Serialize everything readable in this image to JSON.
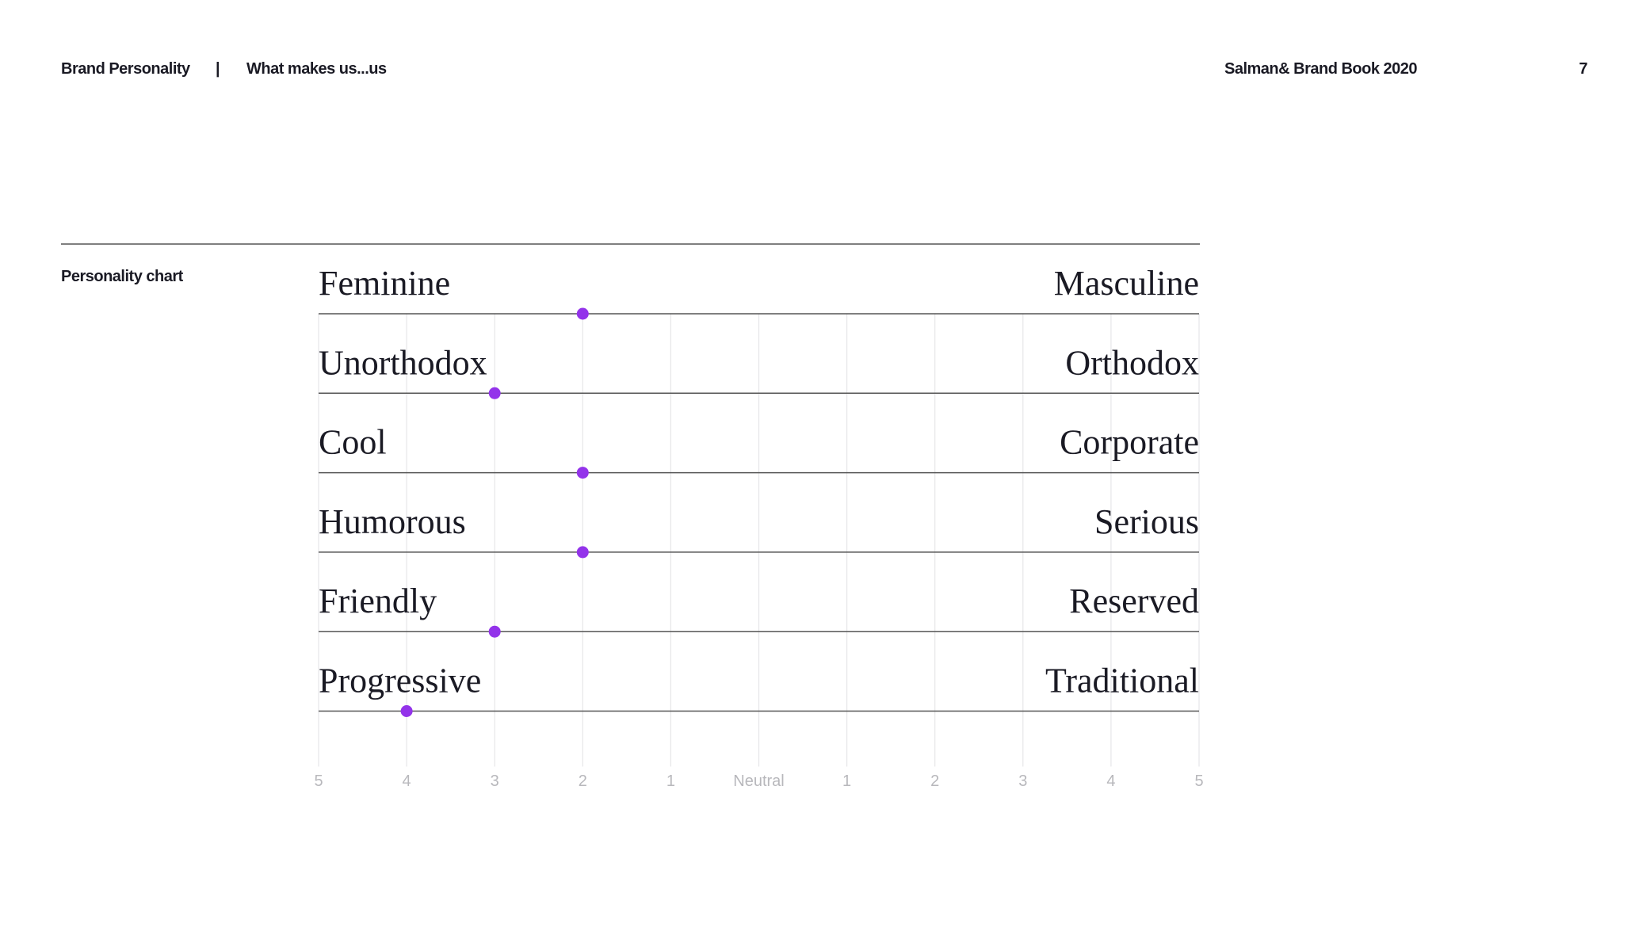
{
  "header": {
    "section": "Brand Personality",
    "separator": "|",
    "subtitle": "What makes us...us",
    "book": "Salman& Brand Book 2020",
    "page": "7"
  },
  "chart_data": {
    "type": "dot",
    "title": "Personality chart",
    "categories": [
      "Feminine",
      "Unorthodox",
      "Cool",
      "Humorous",
      "Friendly",
      "Progressive"
    ],
    "right_labels": [
      "Masculine",
      "Orthodox",
      "Corporate",
      "Serious",
      "Reserved",
      "Traditional"
    ],
    "values": [
      -2,
      -3,
      -2,
      -2,
      -3,
      -4
    ],
    "color": "#9333ea",
    "xlim": [
      -5,
      5
    ],
    "xticks": [
      {
        "value": -5,
        "label": "5"
      },
      {
        "value": -4,
        "label": "4"
      },
      {
        "value": -3,
        "label": "3"
      },
      {
        "value": -2,
        "label": "2"
      },
      {
        "value": -1,
        "label": "1"
      },
      {
        "value": 0,
        "label": "Neutral"
      },
      1,
      2,
      3,
      4,
      5
    ],
    "grid": true
  }
}
